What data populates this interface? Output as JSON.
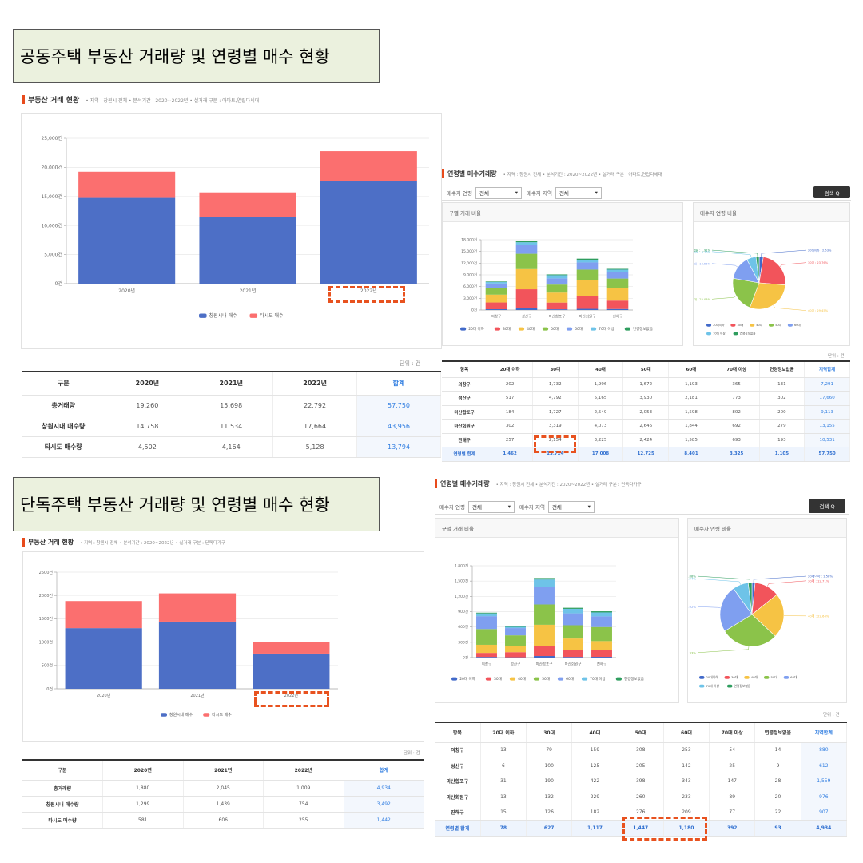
{
  "colors": {
    "local": "#4d6fc6",
    "out": "#fb6f6f",
    "accent_total": "#2f7de1",
    "marker": "#e84b1c",
    "dash": "#e8521f"
  },
  "age_colors": [
    "#4169c9",
    "#f2545b",
    "#f6c344",
    "#8bc34a",
    "#7f9ff0",
    "#6ec3e8",
    "#2e9d5e"
  ],
  "section1": {
    "banner": "공동주택 부동산 거래량 및 연령별 매수 현황",
    "trade": {
      "title": "부동산 거래 현황",
      "meta": "• 지역 : 창원시 전체  • 분석기간 : 2020~2022년  • 실거래 구분 : 아파트,연립다세대",
      "unit": "단위 : 건",
      "table": {
        "headers": [
          "구분",
          "2020년",
          "2021년",
          "2022년",
          "합계"
        ],
        "rows": [
          [
            "총거래량",
            "19,260",
            "15,698",
            "22,792",
            "57,750"
          ],
          [
            "창원시내 매수량",
            "14,758",
            "11,534",
            "17,664",
            "43,956"
          ],
          [
            "타시도 매수량",
            "4,502",
            "4,164",
            "5,128",
            "13,794"
          ]
        ]
      }
    },
    "age": {
      "title": "연령별 매수거래량",
      "meta": "• 지역 : 창원시 전체  • 분석기간 : 2020~2022년  • 실거래 구분 : 아파트,연립다세대",
      "filter_age_label": "매수자 연령",
      "filter_age_value": "전체",
      "filter_region_label": "매수자 지역",
      "filter_region_value": "전체",
      "search_label": "검색 Q",
      "left_panel_title": "구별 거래 비율",
      "right_panel_title": "매수자 연령 비율",
      "unit": "단위 : 건",
      "table": {
        "headers": [
          "항목",
          "20대 이하",
          "30대",
          "40대",
          "50대",
          "60대",
          "70대 이상",
          "연령정보없음",
          "지역합계"
        ],
        "rows": [
          [
            "의창구",
            "202",
            "1,732",
            "1,996",
            "1,672",
            "1,193",
            "365",
            "131",
            "7,291"
          ],
          [
            "성산구",
            "517",
            "4,792",
            "5,165",
            "3,930",
            "2,181",
            "773",
            "302",
            "17,660"
          ],
          [
            "마산합포구",
            "184",
            "1,727",
            "2,549",
            "2,053",
            "1,598",
            "802",
            "200",
            "9,113"
          ],
          [
            "마산회원구",
            "302",
            "3,319",
            "4,073",
            "2,646",
            "1,844",
            "692",
            "279",
            "13,155"
          ],
          [
            "진해구",
            "257",
            "2,154",
            "3,225",
            "2,424",
            "1,585",
            "693",
            "193",
            "10,531"
          ]
        ],
        "total": [
          "연령별 합계",
          "1,462",
          "13,724",
          "17,008",
          "12,725",
          "8,401",
          "3,325",
          "1,105",
          "57,750"
        ]
      }
    }
  },
  "section2": {
    "banner": "단독주택 부동산 거래량 및 연령별 매수 현황",
    "trade": {
      "title": "부동산 거래 현황",
      "meta": "• 지역 : 창원시 전체  • 분석기간 : 2020~2022년  • 실거래 구분 : 단독다가구",
      "unit": "단위 : 건",
      "table": {
        "headers": [
          "구분",
          "2020년",
          "2021년",
          "2022년",
          "합계"
        ],
        "rows": [
          [
            "총거래량",
            "1,880",
            "2,045",
            "1,009",
            "4,934"
          ],
          [
            "창원시내 매수량",
            "1,299",
            "1,439",
            "754",
            "3,492"
          ],
          [
            "타시도 매수량",
            "581",
            "606",
            "255",
            "1,442"
          ]
        ]
      }
    },
    "age": {
      "title": "연령별 매수거래량",
      "meta": "• 지역 : 창원시 전체  • 분석기간 : 2020~2022년  • 실거래 구분 : 단독다가구",
      "filter_age_label": "매수자 연령",
      "filter_age_value": "전체",
      "filter_region_label": "매수자 지역",
      "filter_region_value": "전체",
      "search_label": "검색 Q",
      "left_panel_title": "구별 거래 비율",
      "right_panel_title": "매수자 연령 비율",
      "unit": "단위 : 건",
      "table": {
        "headers": [
          "항목",
          "20대 이하",
          "30대",
          "40대",
          "50대",
          "60대",
          "70대 이상",
          "연령정보없음",
          "지역합계"
        ],
        "rows": [
          [
            "의창구",
            "13",
            "79",
            "159",
            "308",
            "253",
            "54",
            "14",
            "880"
          ],
          [
            "성산구",
            "6",
            "100",
            "125",
            "205",
            "142",
            "25",
            "9",
            "612"
          ],
          [
            "마산합포구",
            "31",
            "190",
            "422",
            "398",
            "343",
            "147",
            "28",
            "1,559"
          ],
          [
            "마산회원구",
            "13",
            "132",
            "229",
            "260",
            "233",
            "89",
            "20",
            "976"
          ],
          [
            "진해구",
            "15",
            "126",
            "182",
            "276",
            "209",
            "77",
            "22",
            "907"
          ]
        ],
        "total": [
          "연령별 합계",
          "78",
          "627",
          "1,117",
          "1,447",
          "1,180",
          "392",
          "93",
          "4,934"
        ]
      }
    }
  },
  "chart_data": [
    {
      "id": "s1-trade",
      "type": "bar",
      "stacked": true,
      "categories": [
        "2020년",
        "2021년",
        "2022년"
      ],
      "series": [
        {
          "name": "창원시내 매수",
          "values": [
            14758,
            11534,
            17664
          ]
        },
        {
          "name": "타시도 매수",
          "values": [
            4502,
            4164,
            5128
          ]
        }
      ],
      "ylim": [
        0,
        25000
      ],
      "yticks": [
        "0건",
        "5,000건",
        "10,000건",
        "15,000건",
        "20,000건",
        "25,000건"
      ],
      "legend": "bottom"
    },
    {
      "id": "s1-district",
      "type": "bar",
      "stacked": true,
      "categories": [
        "의창구",
        "성산구",
        "마산합포구",
        "마산회원구",
        "진해구"
      ],
      "series": [
        {
          "name": "20대 이하",
          "values": [
            202,
            517,
            184,
            302,
            257
          ]
        },
        {
          "name": "30대",
          "values": [
            1732,
            4792,
            1727,
            3319,
            2154
          ]
        },
        {
          "name": "40대",
          "values": [
            1996,
            5165,
            2549,
            4073,
            3225
          ]
        },
        {
          "name": "50대",
          "values": [
            1672,
            3930,
            2053,
            2646,
            2424
          ]
        },
        {
          "name": "60대",
          "values": [
            1193,
            2181,
            1598,
            1844,
            1585
          ]
        },
        {
          "name": "70대 이상",
          "values": [
            365,
            773,
            802,
            692,
            693
          ]
        },
        {
          "name": "연령정보없음",
          "values": [
            131,
            302,
            200,
            279,
            193
          ]
        }
      ],
      "ylim": [
        0,
        18000
      ],
      "yticks": [
        "0건",
        "3,000건",
        "6,000건",
        "9,000건",
        "12,000건",
        "15,000건",
        "18,000건"
      ],
      "legend": "bottom"
    },
    {
      "id": "s1-agepie",
      "type": "pie",
      "labels": [
        "20대이하",
        "30대",
        "40대",
        "50대",
        "60대",
        "70대 이상",
        "연령정보없음"
      ],
      "values": [
        1462,
        13724,
        17008,
        12725,
        8401,
        3325,
        1105
      ],
      "slice_labels": [
        "20대이하 : 2.53%",
        "30대 : 23.76%",
        "40대 : 29.45%",
        "50대 : 22.03%",
        "60대 : 14.55%",
        "70대 이상 : 5.76%",
        "연령정보없음 : 1.91%"
      ],
      "legend": "bottom"
    },
    {
      "id": "s2-trade",
      "type": "bar",
      "stacked": true,
      "categories": [
        "2020년",
        "2021년",
        "2022년"
      ],
      "series": [
        {
          "name": "창원시내 매수",
          "values": [
            1299,
            1439,
            754
          ]
        },
        {
          "name": "타시도 매수",
          "values": [
            581,
            606,
            255
          ]
        }
      ],
      "ylim": [
        0,
        2500
      ],
      "yticks": [
        "0건",
        "500건",
        "1000건",
        "1500건",
        "2000건",
        "2500건"
      ],
      "legend": "bottom"
    },
    {
      "id": "s2-district",
      "type": "bar",
      "stacked": true,
      "categories": [
        "의창구",
        "성산구",
        "마산합포구",
        "마산회원구",
        "진해구"
      ],
      "series": [
        {
          "name": "20대 이하",
          "values": [
            13,
            6,
            31,
            13,
            15
          ]
        },
        {
          "name": "30대",
          "values": [
            79,
            100,
            190,
            132,
            126
          ]
        },
        {
          "name": "40대",
          "values": [
            159,
            125,
            422,
            229,
            182
          ]
        },
        {
          "name": "50대",
          "values": [
            308,
            205,
            398,
            260,
            276
          ]
        },
        {
          "name": "60대",
          "values": [
            253,
            142,
            343,
            233,
            209
          ]
        },
        {
          "name": "70대 이상",
          "values": [
            54,
            25,
            147,
            89,
            77
          ]
        },
        {
          "name": "연령정보없음",
          "values": [
            14,
            9,
            28,
            20,
            22
          ]
        }
      ],
      "ylim": [
        0,
        1800
      ],
      "yticks": [
        "0건",
        "300건",
        "600건",
        "900건",
        "1,200건",
        "1,500건",
        "1,800건"
      ],
      "legend": "bottom"
    },
    {
      "id": "s2-agepie",
      "type": "pie",
      "labels": [
        "20대이하",
        "30대",
        "40대",
        "50대",
        "60대",
        "70대 이상",
        "연령정보없음"
      ],
      "values": [
        78,
        627,
        1117,
        1447,
        1180,
        392,
        93
      ],
      "slice_labels": [
        "20대이하 : 1.58%",
        "30대 : 12.71%",
        "40대 : 22.64%",
        "50대 : 29.33%",
        "60대 : 23.92%",
        "70대 이상 : 7.94%",
        "연령정보없음 : 1.88%"
      ],
      "legend": "bottom"
    }
  ]
}
